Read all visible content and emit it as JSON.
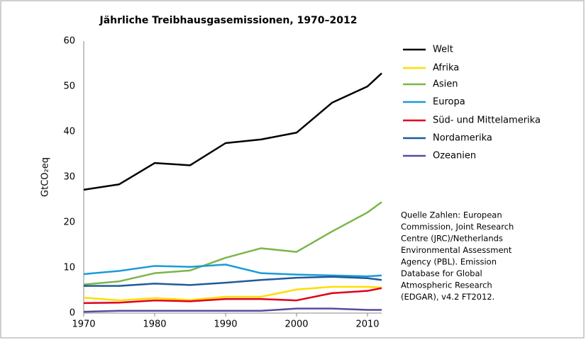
{
  "chart_data": {
    "type": "line",
    "title": "Jährliche Treibhausgasemissionen, 1970–2012",
    "y_label": "GtCO₂eq",
    "x": [
      1970,
      1975,
      1980,
      1985,
      1990,
      1995,
      2000,
      2005,
      2010,
      2012
    ],
    "xlim": [
      1970,
      2012
    ],
    "xticks": [
      1970,
      1980,
      1990,
      2000,
      2010
    ],
    "ylim": [
      0,
      60
    ],
    "yticks": [
      0,
      10,
      20,
      30,
      40,
      50,
      60
    ],
    "grid": false,
    "legend": "right",
    "series": [
      {
        "name": "Welt",
        "color": "#000000",
        "values": [
          27.2,
          28.4,
          33.1,
          32.6,
          37.5,
          38.3,
          39.8,
          46.4,
          50.0,
          52.9
        ]
      },
      {
        "name": "Afrika",
        "color": "#ffdd00",
        "values": [
          3.4,
          2.8,
          3.3,
          2.9,
          3.6,
          3.6,
          5.2,
          5.8,
          5.8,
          5.6
        ]
      },
      {
        "name": "Asien",
        "color": "#7ab648",
        "values": [
          6.3,
          7.0,
          8.8,
          9.4,
          12.2,
          14.3,
          13.5,
          18.0,
          22.2,
          24.5
        ]
      },
      {
        "name": "Europa",
        "color": "#1a9bd7",
        "values": [
          8.6,
          9.3,
          10.4,
          10.2,
          10.7,
          8.8,
          8.5,
          8.3,
          8.1,
          8.3
        ]
      },
      {
        "name": "Süd- und Mittelamerika",
        "color": "#e2001a",
        "values": [
          2.2,
          2.3,
          2.8,
          2.6,
          3.1,
          3.1,
          2.8,
          4.4,
          4.9,
          5.5
        ]
      },
      {
        "name": "Nordamerika",
        "color": "#1f5c99",
        "values": [
          6.0,
          6.0,
          6.5,
          6.2,
          6.7,
          7.3,
          7.8,
          8.0,
          7.7,
          7.3
        ]
      },
      {
        "name": "Ozeanien",
        "color": "#5b4a9e",
        "values": [
          0.3,
          0.5,
          0.5,
          0.5,
          0.5,
          0.5,
          1.0,
          1.0,
          0.7,
          0.7
        ]
      }
    ],
    "annotation": [
      "Quelle Zahlen: European",
      "Commission, Joint Research",
      "Centre (JRC)/Netherlands",
      "Environmental Assessment",
      "Agency (PBL). Emission",
      "Database for Global",
      "Atmospheric Research",
      "(EDGAR), v4.2 FT2012."
    ]
  }
}
